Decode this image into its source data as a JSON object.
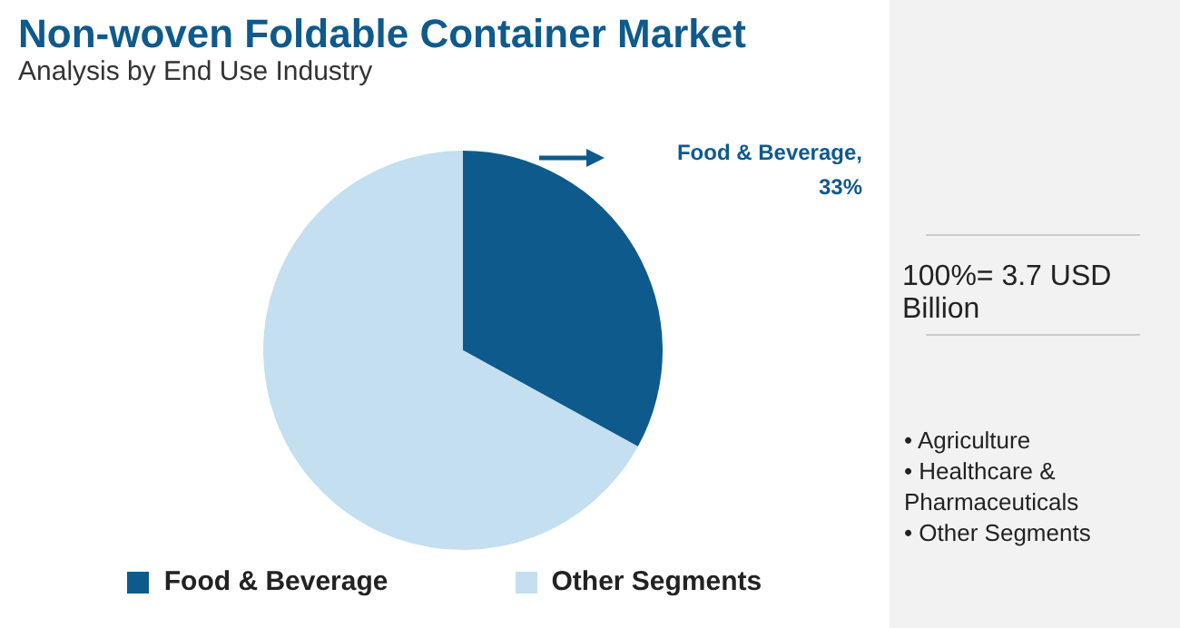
{
  "chart_data": {
    "type": "pie",
    "title": "Non-woven Foldable Container Market",
    "subtitle": "Analysis by End Use Industry",
    "categories": [
      "Food & Beverage",
      "Other Segments"
    ],
    "values": [
      33,
      67
    ],
    "colors": [
      "#0f5a8c",
      "#c3dff0"
    ],
    "value_labels": [
      "Food & Beverage, 33%",
      null
    ],
    "legend": "bottom",
    "annotations": [
      "100%= 3.7 USD Billion",
      "• Agriculture",
      "• Healthcare & Pharmaceuticals",
      "• Other Segments"
    ]
  }
}
